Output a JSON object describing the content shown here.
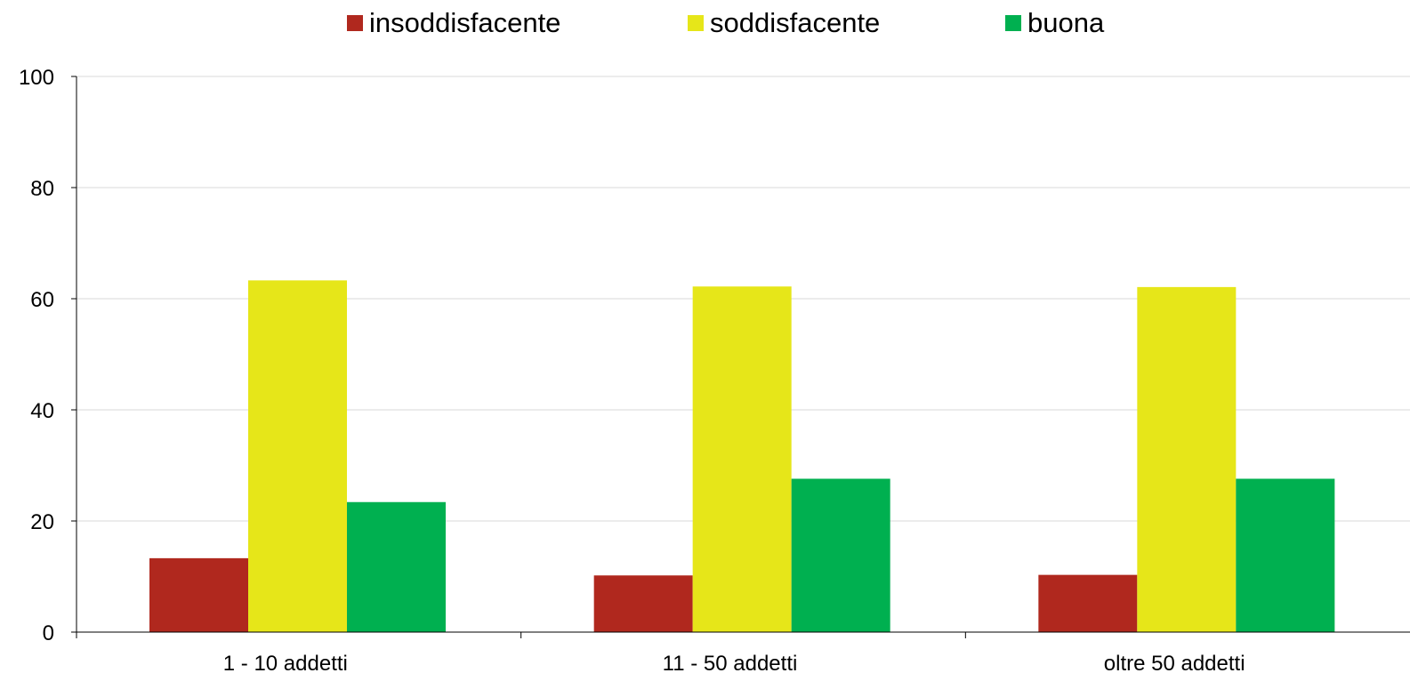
{
  "chart_data": {
    "type": "bar",
    "title": "",
    "xlabel": "",
    "ylabel": "",
    "categories": [
      "1 - 10 addetti",
      "11 - 50 addetti",
      "oltre 50 addetti"
    ],
    "series": [
      {
        "name": "insoddisfacente",
        "color": "#b0281e",
        "values": [
          13.3,
          10.2,
          10.3
        ]
      },
      {
        "name": "soddisfacente",
        "color": "#e6e619",
        "values": [
          63.3,
          62.2,
          62.1
        ]
      },
      {
        "name": "buona",
        "color": "#00b050",
        "values": [
          23.4,
          27.6,
          27.6
        ]
      }
    ],
    "ylim": [
      0,
      100
    ],
    "yticks": [
      "0",
      "20",
      "40",
      "60",
      "80",
      "100"
    ],
    "grid": true,
    "legend_position": "top-center"
  }
}
